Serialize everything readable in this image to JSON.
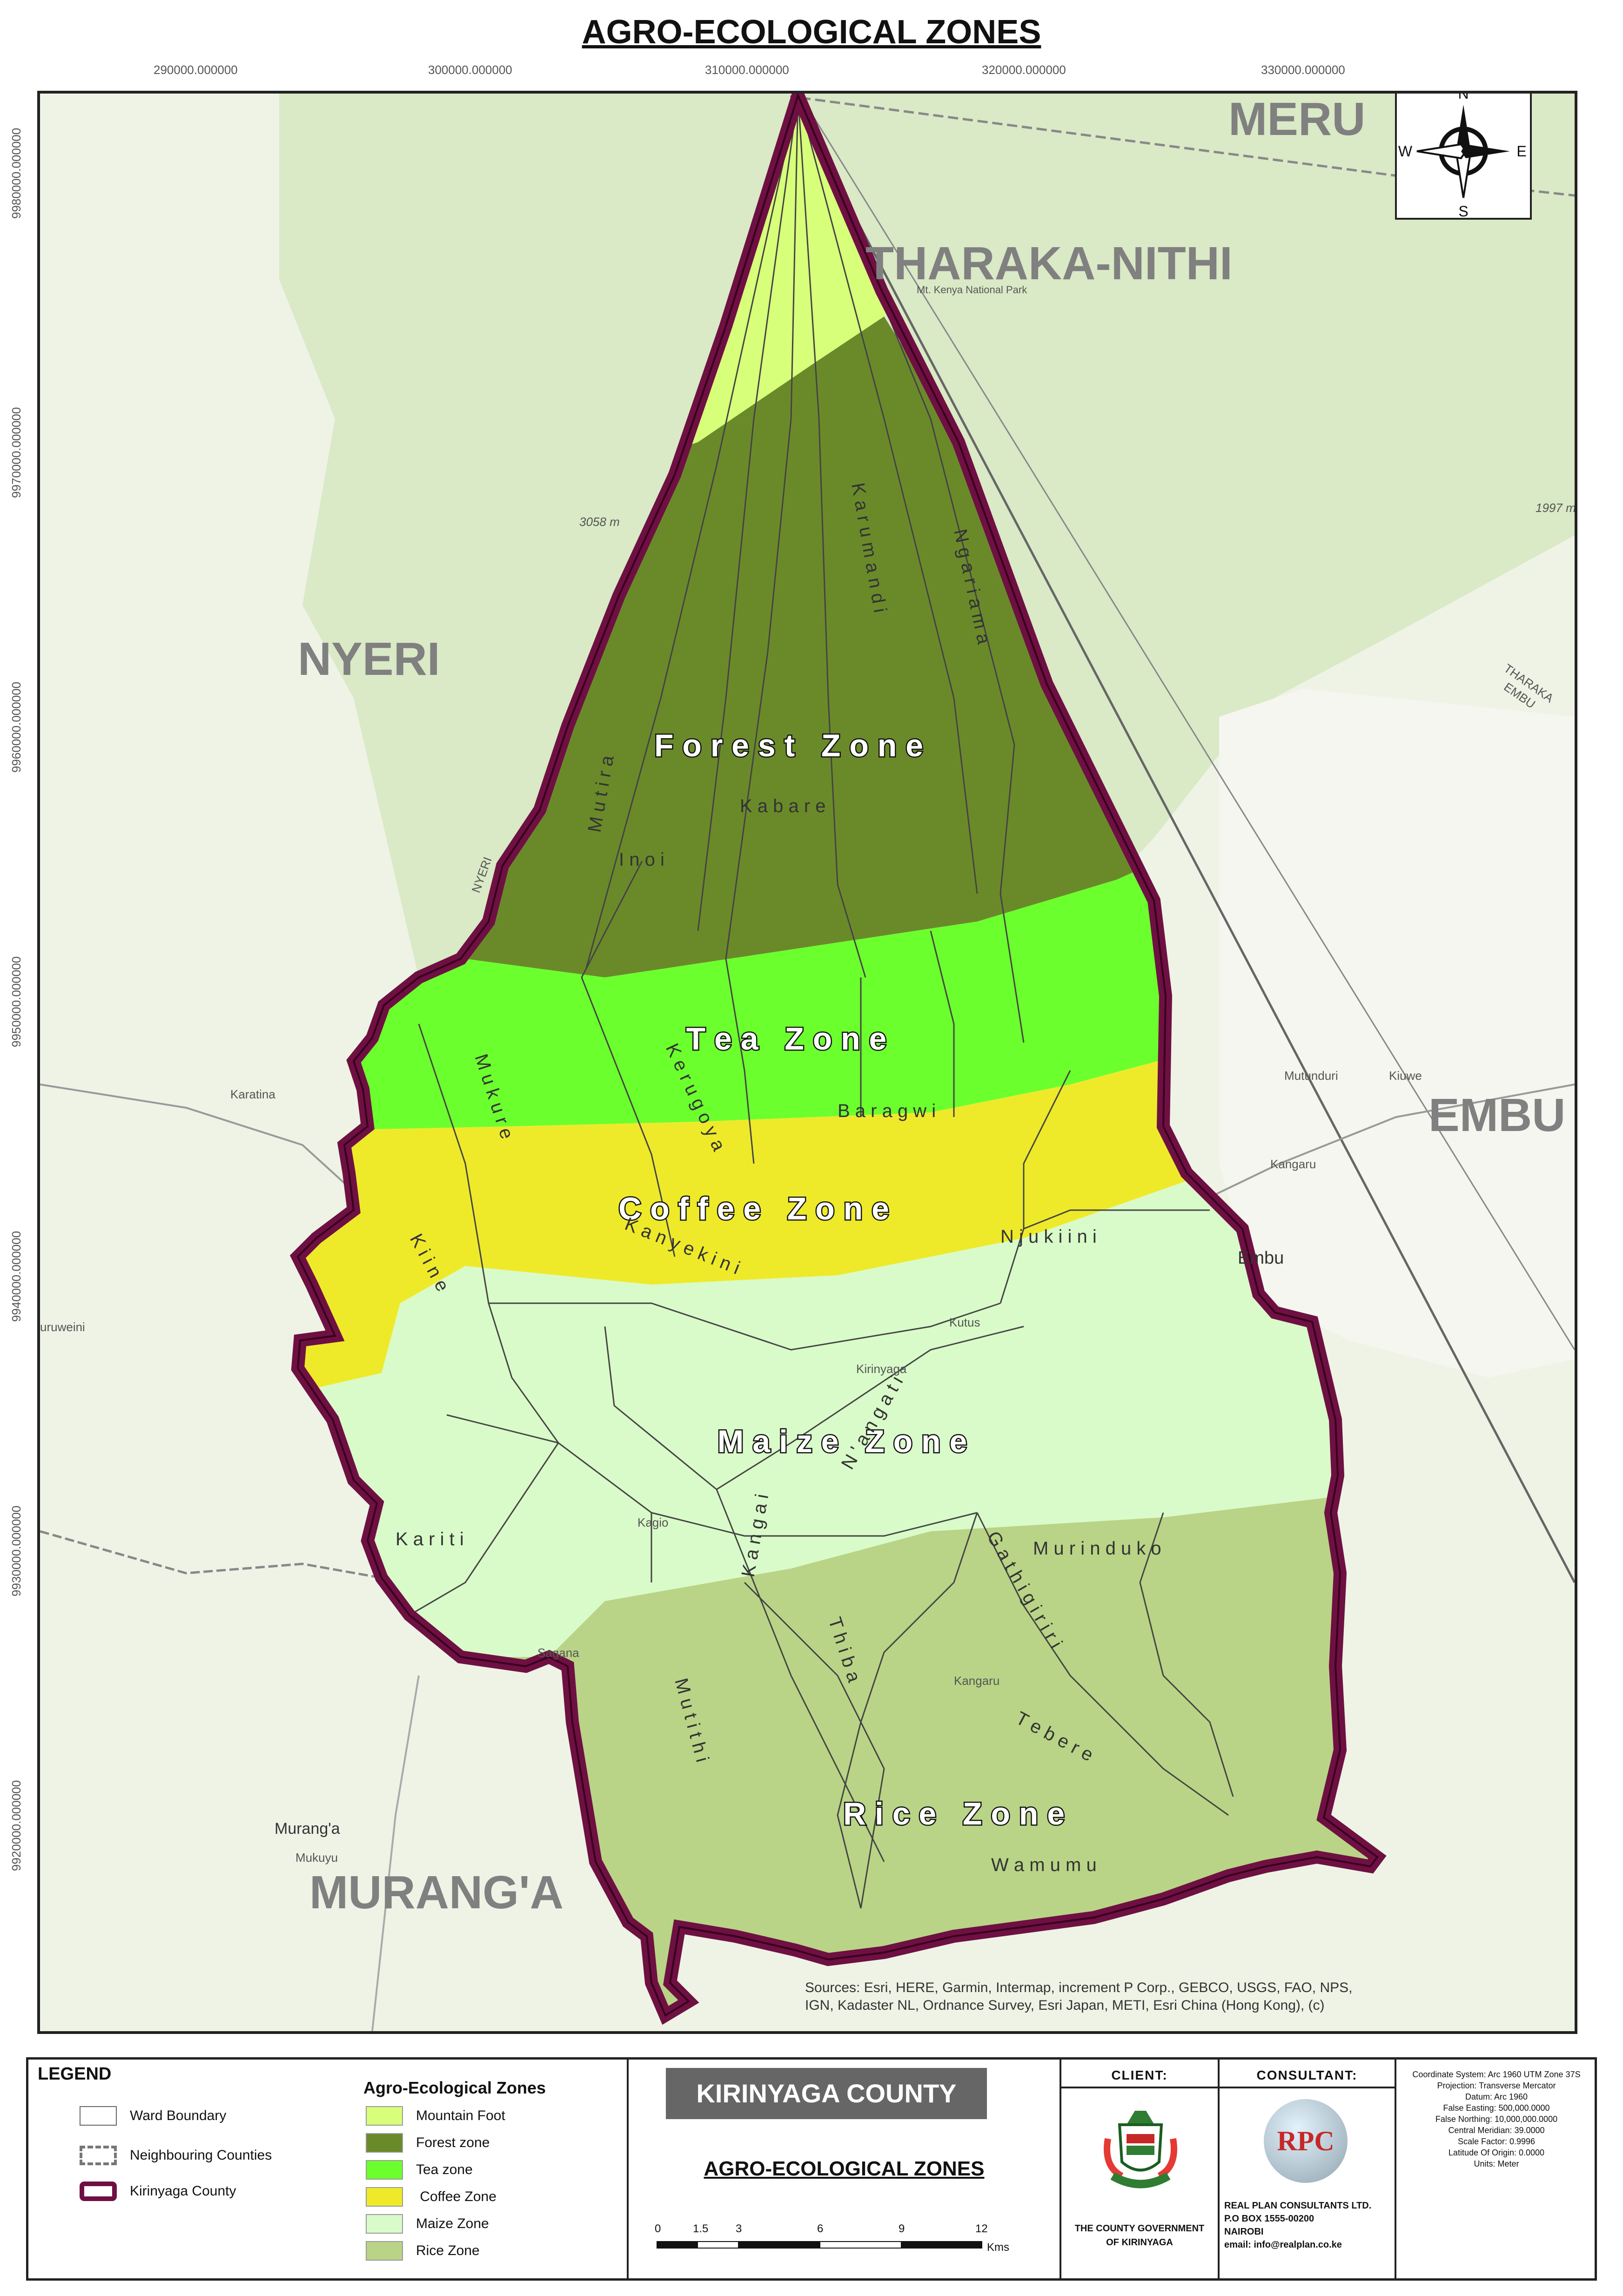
{
  "title": "AGRO-ECOLOGICAL ZONES",
  "easting_ticks": [
    "290000.000000",
    "300000.000000",
    "310000.000000",
    "320000.000000",
    "330000.000000"
  ],
  "northing_ticks": [
    "9980000.000000",
    "9970000.000000",
    "9960000.000000",
    "9950000.000000",
    "9940000.000000",
    "9930000.000000",
    "9920000.000000"
  ],
  "north_arrow": {
    "n": "N",
    "s": "S",
    "e": "E",
    "w": "W"
  },
  "counties": {
    "meru": "MERU",
    "tharaka": "THARAKA-NITHI",
    "nyeri": "NYERI",
    "embu": "EMBU",
    "muranga": "MURANG'A"
  },
  "zones": {
    "forest": "F o r e s t   Z o n e",
    "tea": "T e a   Z o n e",
    "coffee": "C o f f e e   Z o n e",
    "maize": "M a i z e   Z o n e",
    "rice": "R i c e   Z o n e"
  },
  "wards": {
    "karumandi": "K a r u m a n d i",
    "ngariama": "N g a r i a m a",
    "kabare": "K a b a r e",
    "inoi": "I n o i",
    "mutira": "M u t i r a",
    "baragwi": "B a r a g w i",
    "mukure": "M u k u r e",
    "kerugoya": "K e r u g o y a",
    "kanyekini": "K a n y e k i n i",
    "njukiini": "N j u k i i n i",
    "kiine": "K i i n e",
    "kariti": "K a r i t i",
    "kangai": "K a n g a i",
    "nyangati": "N ' a n g a t i",
    "murinduko": "M u r i n d u k o",
    "gathigiriri": "G a t h i g i r i r i",
    "thiba": "T h i b a",
    "tebere": "T e b e r e",
    "mutithi": "M u t i t h i",
    "wamumu": "W a m u m u"
  },
  "places": {
    "karatina": "Karatina",
    "embu_town": "Embu",
    "kangaru": "Kangaru",
    "mutunduri": "Mutunduri",
    "kiuwe": "Kiuwe",
    "muranga_town": "Murang'a",
    "mukuyu": "Mukuyu",
    "kirinyaga": "Kirinyaga",
    "kagio": "Kagio",
    "sagana": "Sagana",
    "kangaru2": "Kangaru",
    "kutus": "Kutus",
    "peak": "3058 m",
    "park": "Mt. Kenya National Park",
    "uruweini": "uruweini",
    "nyeri_road": "NYERI",
    "tharaka_road": "THARAKA",
    "embu_road": "EMBU",
    "e1997": "1997 m"
  },
  "attribution": [
    "Sources: Esri, HERE, Garmin, Intermap, increment P Corp., GEBCO, USGS, FAO, NPS,",
    "IGN, Kadaster NL, Ordnance Survey, Esri Japan, METI, Esri China (Hong Kong), (c)"
  ],
  "legend": {
    "heading": "LEGEND",
    "ward": "Ward Boundary",
    "neighbours": "Neighbouring Counties",
    "county": "Kirinyaga County",
    "zones_title": "Agro-Ecological Zones",
    "zone_items": [
      {
        "label": "Mountain Foot",
        "color": "#d7ff7a"
      },
      {
        "label": "Forest zone",
        "color": "#6a8a2a"
      },
      {
        "label": "Tea zone",
        "color": "#6cff2e"
      },
      {
        "label": " Coffee Zone",
        "color": "#eeea2a"
      },
      {
        "label": "Maize Zone",
        "color": "#d9fbc9"
      },
      {
        "label": "Rice Zone",
        "color": "#b9d486"
      }
    ]
  },
  "title_block": {
    "county": "KIRINYAGA COUNTY",
    "subtitle": "AGRO-ECOLOGICAL ZONES"
  },
  "scale": {
    "ticks": [
      "0",
      "1.5",
      "3",
      "6",
      "9",
      "12"
    ],
    "unit": "Kms"
  },
  "client": {
    "heading": "CLIENT:",
    "line1": "THE COUNTY GOVERNMENT",
    "line2": "OF KIRINYAGA",
    "logo": "county-coat-of-arms-icon"
  },
  "consultant": {
    "heading": "CONSULTANT:",
    "logo": "RPC",
    "line1": "REAL PLAN CONSULTANTS LTD.",
    "line2": "P.O BOX 1555-00200",
    "line3": "NAIROBI",
    "line4": "email: info@realplan.co.ke"
  },
  "projection": [
    "Coordinate System: Arc 1960 UTM Zone 37S",
    "Projection: Transverse Mercator",
    "Datum: Arc 1960",
    "False Easting: 500,000.0000",
    "False Northing: 10,000,000.0000",
    "Central Meridian: 39.0000",
    "Scale Factor: 0.9996",
    "Latitude Of Origin: 0.0000",
    "Units: Meter"
  ]
}
